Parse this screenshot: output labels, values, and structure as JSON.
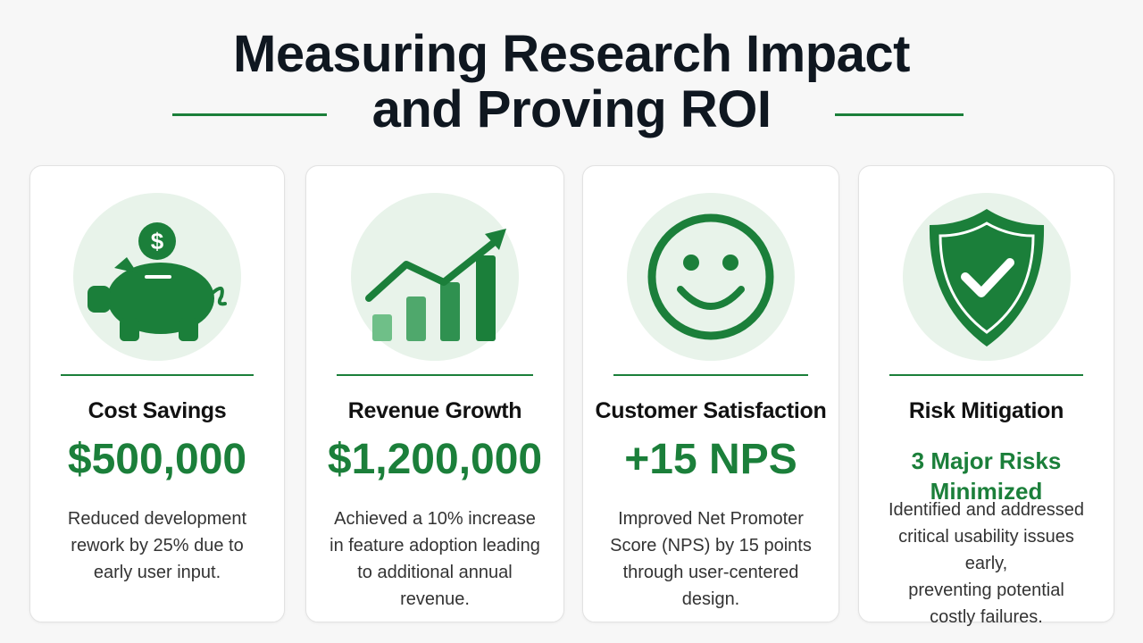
{
  "header": {
    "title_line1": "Measuring Research Impact",
    "title_line2": "and Proving ROI"
  },
  "colors": {
    "accent": "#1b7f3a",
    "icon_background": "#e8f3ea",
    "background": "#f7f7f7"
  },
  "cards": [
    {
      "icon": "piggy-bank-icon",
      "heading": "Cost Savings",
      "metric": "$500,000",
      "description_lines": [
        "Reduced development",
        "rework by 25% due to",
        "early user input."
      ]
    },
    {
      "icon": "growth-chart-icon",
      "heading": "Revenue Growth",
      "metric": "$1,200,000",
      "description_lines": [
        "Achieved a 10% increase",
        "in feature adoption leading",
        "to additional annual revenue."
      ]
    },
    {
      "icon": "smiley-face-icon",
      "heading": "Customer Satisfaction",
      "metric": "+15 NPS",
      "description_lines": [
        "Improved Net Promoter",
        "Score (NPS) by 15 points",
        "through user-centered design."
      ]
    },
    {
      "icon": "shield-check-icon",
      "heading": "Risk Mitigation",
      "metric": "3 Major Risks Minimized",
      "description_lines": [
        "Identified and addressed",
        "critical usability issues early,",
        "preventing potential",
        "costly failures."
      ]
    }
  ]
}
